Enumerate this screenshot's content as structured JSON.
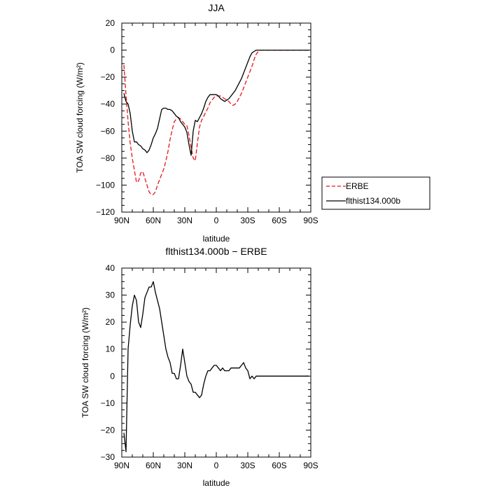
{
  "colors": {
    "erbe": "#e8141c",
    "model": "#000000",
    "frame": "#000000"
  },
  "chart_data": [
    {
      "type": "line",
      "title": "JJA",
      "xlabel": "latitude",
      "ylabel": "TOA SW cloud forcing (W/m²)",
      "xlim": [
        90,
        -90
      ],
      "ylim": [
        -120,
        20
      ],
      "xticks": [
        {
          "value": 90,
          "label": "90N"
        },
        {
          "value": 60,
          "label": "60N"
        },
        {
          "value": 30,
          "label": "30N"
        },
        {
          "value": 0,
          "label": "0"
        },
        {
          "value": -30,
          "label": "30S"
        },
        {
          "value": -60,
          "label": "60S"
        },
        {
          "value": -90,
          "label": "90S"
        }
      ],
      "yticks": [
        {
          "value": 20,
          "label": "20"
        },
        {
          "value": 0,
          "label": "0"
        },
        {
          "value": -20,
          "label": "−20"
        },
        {
          "value": -40,
          "label": "−40"
        },
        {
          "value": -60,
          "label": "−60"
        },
        {
          "value": -80,
          "label": "−80"
        },
        {
          "value": -100,
          "label": "−100"
        },
        {
          "value": -120,
          "label": "−120"
        }
      ],
      "legend_position": "outside-right",
      "series": [
        {
          "name": "ERBE",
          "style": "dashed",
          "color": "#e8141c",
          "x": [
            88,
            86,
            84,
            82,
            80,
            78,
            76,
            74,
            72,
            70,
            68,
            66,
            64,
            62,
            60,
            58,
            56,
            54,
            52,
            50,
            48,
            46,
            44,
            42,
            40,
            38,
            36,
            34,
            32,
            30,
            28,
            26,
            24,
            22,
            20,
            18,
            16,
            14,
            12,
            10,
            8,
            6,
            4,
            2,
            0,
            -2,
            -4,
            -6,
            -8,
            -10,
            -12,
            -14,
            -16,
            -18,
            -20,
            -22,
            -24,
            -26,
            -28,
            -30,
            -32,
            -34,
            -36,
            -38,
            -40,
            -42,
            -44,
            -46,
            -48,
            -50,
            -52,
            -54,
            -56,
            -58,
            -60,
            -62,
            -64,
            -66,
            -68,
            -70,
            -72,
            -74,
            -76,
            -78,
            -80,
            -82,
            -84,
            -86,
            -88
          ],
          "y": [
            -11,
            -33,
            -53,
            -69,
            -80,
            -89,
            -98,
            -97,
            -91,
            -90,
            -95,
            -100,
            -105,
            -107,
            -107,
            -105,
            -100,
            -96,
            -92,
            -88,
            -82,
            -75,
            -66,
            -59,
            -53,
            -51,
            -50,
            -51,
            -53,
            -55,
            -56,
            -63,
            -72,
            -80,
            -82,
            -69,
            -57,
            -52,
            -49,
            -46,
            -43,
            -39,
            -37,
            -35,
            -34,
            -34,
            -34,
            -35,
            -36,
            -37,
            -38,
            -40,
            -41,
            -40,
            -38,
            -35,
            -32,
            -28,
            -24,
            -20,
            -16,
            -12,
            -7,
            -3,
            -1,
            0,
            0,
            0,
            0,
            0,
            0,
            0,
            0,
            0,
            0,
            0,
            0,
            0,
            0,
            0,
            0,
            0,
            0,
            0,
            0,
            0,
            0,
            0,
            0
          ]
        },
        {
          "name": "flthist134.000b",
          "style": "solid",
          "color": "#000000",
          "x": [
            88,
            86,
            84,
            82,
            80,
            78,
            76,
            74,
            72,
            70,
            68,
            66,
            64,
            62,
            60,
            58,
            56,
            54,
            52,
            50,
            48,
            46,
            44,
            42,
            40,
            38,
            36,
            34,
            32,
            30,
            28,
            26,
            24,
            22,
            20,
            18,
            16,
            14,
            12,
            10,
            8,
            6,
            4,
            2,
            0,
            -2,
            -4,
            -6,
            -8,
            -10,
            -12,
            -14,
            -16,
            -18,
            -20,
            -22,
            -24,
            -26,
            -28,
            -30,
            -32,
            -34,
            -36,
            -38,
            -40,
            -42,
            -44,
            -46,
            -48,
            -50,
            -52,
            -54,
            -56,
            -58,
            -60,
            -62,
            -64,
            -66,
            -68,
            -70,
            -72,
            -74,
            -76,
            -78,
            -80,
            -82,
            -84,
            -86,
            -88
          ],
          "y": [
            -32,
            -38,
            -40,
            -47,
            -60,
            -68,
            -68,
            -70,
            -71,
            -73,
            -74,
            -76,
            -74,
            -70,
            -65,
            -62,
            -58,
            -51,
            -44,
            -43,
            -43,
            -44,
            -44,
            -45,
            -47,
            -49,
            -50,
            -53,
            -55,
            -57,
            -61,
            -70,
            -78,
            -60,
            -52,
            -53,
            -50,
            -47,
            -43,
            -38,
            -35,
            -33,
            -33,
            -33,
            -33,
            -34,
            -36,
            -37,
            -38,
            -37,
            -36,
            -34,
            -32,
            -30,
            -27,
            -24,
            -21,
            -17,
            -13,
            -9,
            -5,
            -2,
            -1,
            0,
            0,
            0,
            0,
            0,
            0,
            0,
            0,
            0,
            0,
            0,
            0,
            0,
            0,
            0,
            0,
            0,
            0,
            0,
            0,
            0,
            0,
            0,
            0,
            0,
            0
          ]
        }
      ]
    },
    {
      "type": "line",
      "title": "flthist134.000b − ERBE",
      "xlabel": "latitude",
      "ylabel": "TOA SW cloud forcing (W/m²)",
      "xlim": [
        90,
        -90
      ],
      "ylim": [
        -30,
        40
      ],
      "xticks": [
        {
          "value": 90,
          "label": "90N"
        },
        {
          "value": 60,
          "label": "60N"
        },
        {
          "value": 30,
          "label": "30N"
        },
        {
          "value": 0,
          "label": "0"
        },
        {
          "value": -30,
          "label": "30S"
        },
        {
          "value": -60,
          "label": "60S"
        },
        {
          "value": -90,
          "label": "90S"
        }
      ],
      "yticks": [
        {
          "value": 40,
          "label": "40"
        },
        {
          "value": 30,
          "label": "30"
        },
        {
          "value": 20,
          "label": "20"
        },
        {
          "value": 10,
          "label": "10"
        },
        {
          "value": 0,
          "label": "0"
        },
        {
          "value": -10,
          "label": "−10"
        },
        {
          "value": -20,
          "label": "−20"
        },
        {
          "value": -30,
          "label": "−30"
        }
      ],
      "series": [
        {
          "style": "solid",
          "color": "#000000",
          "x": [
            88,
            86,
            84,
            82,
            80,
            78,
            76,
            74,
            72,
            70,
            68,
            66,
            64,
            62,
            60,
            58,
            56,
            54,
            52,
            50,
            48,
            46,
            44,
            42,
            40,
            38,
            36,
            34,
            32,
            30,
            28,
            26,
            24,
            22,
            20,
            18,
            16,
            14,
            12,
            10,
            8,
            6,
            4,
            2,
            0,
            -2,
            -4,
            -6,
            -8,
            -10,
            -12,
            -14,
            -16,
            -18,
            -20,
            -22,
            -24,
            -26,
            -28,
            -30,
            -32,
            -34,
            -36,
            -38,
            -40,
            -42,
            -44,
            -46,
            -48,
            -50,
            -52,
            -54,
            -56,
            -58,
            -60,
            -62,
            -64,
            -66,
            -68,
            -70,
            -72,
            -74,
            -76,
            -78,
            -80,
            -82,
            -84,
            -86,
            -88
          ],
          "y": [
            -21,
            -28,
            10,
            19,
            26,
            30,
            28,
            20,
            18,
            23,
            29,
            31,
            33,
            33,
            35,
            31,
            28,
            25,
            20,
            15,
            10,
            7,
            5,
            1,
            1,
            -1,
            -1,
            4,
            10,
            5,
            0,
            -2,
            -3,
            -6,
            -6,
            -7,
            -8,
            -7,
            -3,
            0,
            2,
            2,
            3,
            4,
            4,
            3,
            2,
            3,
            2,
            2,
            2,
            3,
            3,
            3,
            3,
            3,
            4,
            5,
            3,
            2,
            -1,
            0,
            -1,
            0,
            0,
            0,
            0,
            0,
            0,
            0,
            0,
            0,
            0,
            0,
            0,
            0,
            0,
            0,
            0,
            0,
            0,
            0,
            0,
            0,
            0,
            0,
            0,
            0,
            0
          ]
        }
      ]
    }
  ]
}
